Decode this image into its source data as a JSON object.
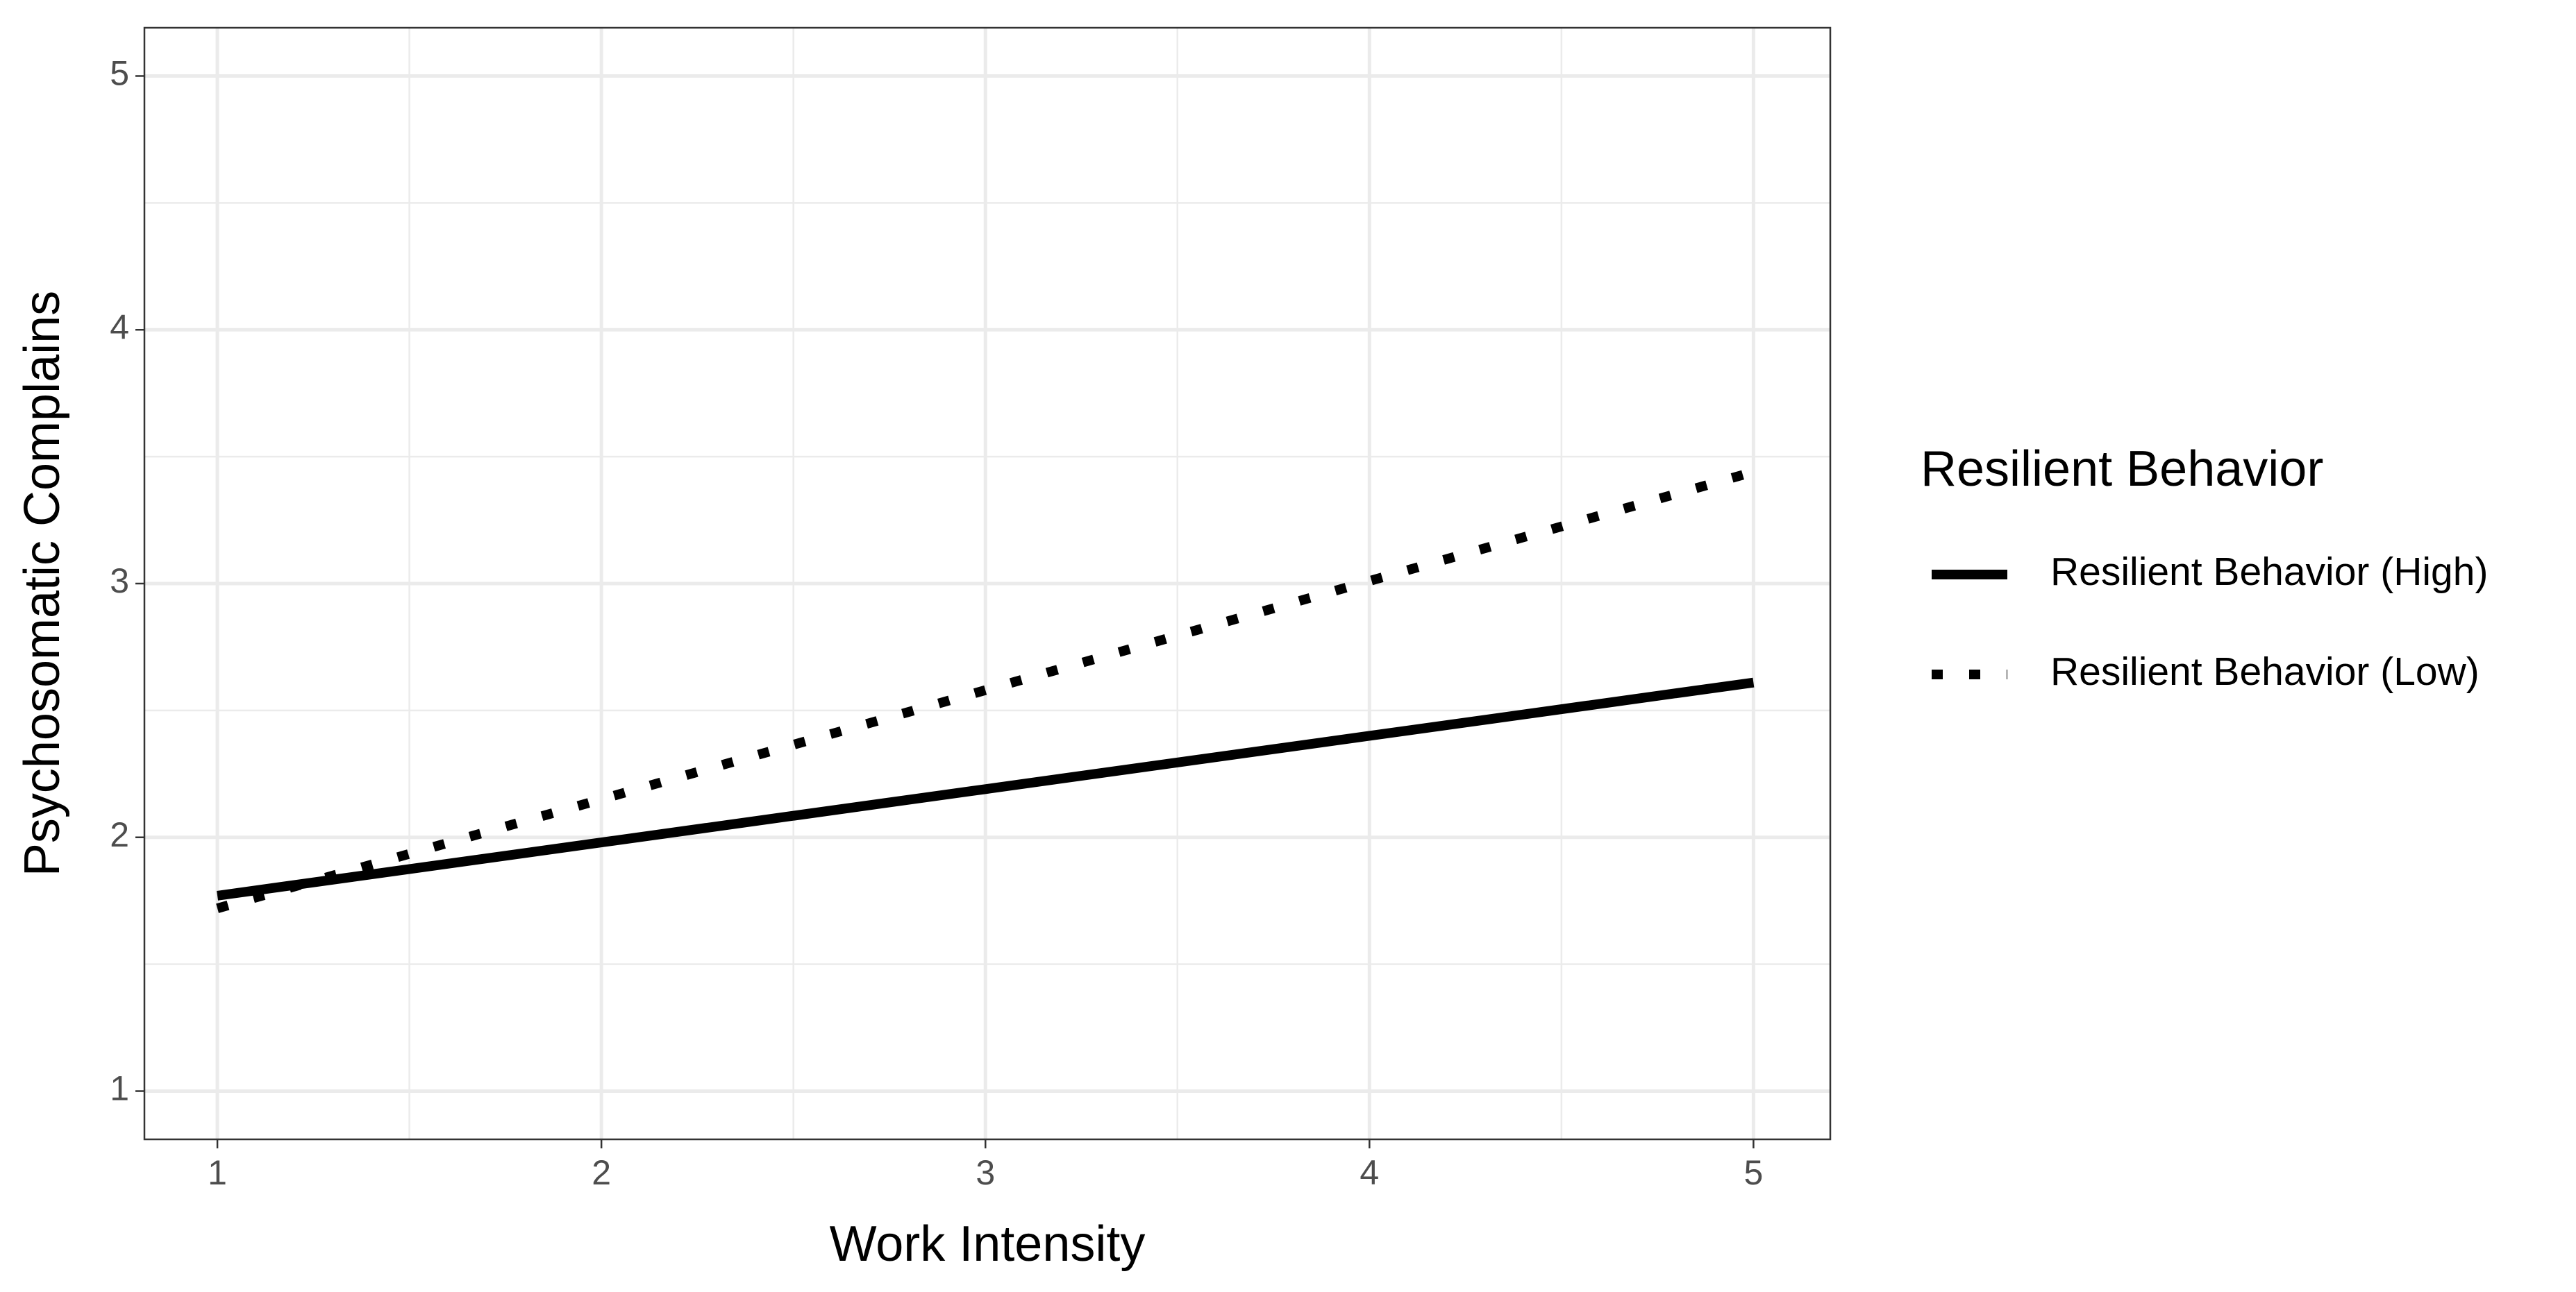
{
  "chart_data": {
    "type": "line",
    "x_label": "Work Intensity",
    "y_label": "Psychosomatic Complains",
    "legend_title": "Resilient Behavior",
    "legend_position": "right",
    "x": [
      1,
      2,
      3,
      4,
      5
    ],
    "series": [
      {
        "name": "Resilient Behavior (High)",
        "color": "#000000",
        "line_style": "solid",
        "values": [
          1.77,
          1.98,
          2.19,
          2.4,
          2.61
        ]
      },
      {
        "name": "Resilient Behavior (Low)",
        "color": "#000000",
        "line_style": "dotted",
        "values": [
          1.72,
          2.15,
          2.58,
          3.01,
          3.44
        ]
      }
    ],
    "xlim": [
      0.81,
      5.2
    ],
    "xticks": [
      1,
      2,
      3,
      4,
      5
    ],
    "ylim": [
      0.81,
      5.19
    ],
    "yticks": [
      1,
      2,
      3,
      4,
      5
    ],
    "grid": true,
    "minor_grid": true
  }
}
